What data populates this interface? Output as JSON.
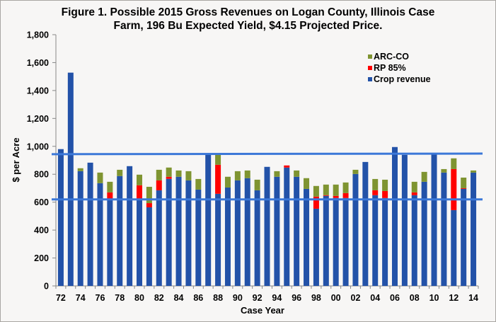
{
  "chart_data": {
    "type": "bar",
    "stacked": true,
    "title": "Figure 1.  Possible 2015 Gross Revenues on Logan County, Illinois Case Farm, 196 Bu Expected Yield,  $4.15 Projected Price.",
    "title_lines": [
      "Figure 1.  Possible 2015 Gross Revenues on Logan County, Illinois Case",
      "Farm, 196 Bu Expected Yield,  $4.15 Projected Price."
    ],
    "xlabel": "Case Year",
    "ylabel": "$ per Acre",
    "ylim": [
      0,
      1800
    ],
    "yticks": [
      0,
      200,
      400,
      600,
      800,
      1000,
      1200,
      1400,
      1600,
      1800
    ],
    "ytick_labels": [
      "0",
      "200",
      "400",
      "600",
      "800",
      "1,000",
      "1,200",
      "1,400",
      "1,600",
      "1,800"
    ],
    "categories": [
      "72",
      "73",
      "74",
      "75",
      "76",
      "77",
      "78",
      "79",
      "80",
      "81",
      "82",
      "83",
      "84",
      "85",
      "86",
      "87",
      "88",
      "89",
      "90",
      "91",
      "92",
      "93",
      "94",
      "95",
      "96",
      "97",
      "98",
      "99",
      "00",
      "01",
      "02",
      "03",
      "04",
      "05",
      "06",
      "07",
      "08",
      "09",
      "10",
      "11",
      "12",
      "13",
      "14"
    ],
    "xtick_labels": [
      "72",
      "74",
      "76",
      "78",
      "80",
      "82",
      "84",
      "86",
      "88",
      "90",
      "92",
      "94",
      "96",
      "98",
      "00",
      "02",
      "04",
      "06",
      "08",
      "10",
      "12",
      "14"
    ],
    "grid": false,
    "legend_position": "top-right",
    "series": [
      {
        "name": "Crop revenue",
        "color": "#2352a8",
        "values": [
          980,
          1528,
          822,
          883,
          736,
          625,
          787,
          858,
          620,
          563,
          685,
          767,
          782,
          756,
          690,
          940,
          660,
          705,
          756,
          772,
          685,
          853,
          782,
          848,
          782,
          695,
          553,
          645,
          630,
          630,
          802,
          888,
          650,
          630,
          995,
          939,
          650,
          746,
          942,
          812,
          543,
          695,
          812
        ]
      },
      {
        "name": "RP 85%",
        "color": "#ff0000",
        "values": [
          0,
          0,
          0,
          0,
          0,
          45,
          0,
          0,
          101,
          30,
          71,
          15,
          0,
          0,
          0,
          0,
          208,
          0,
          0,
          0,
          0,
          0,
          0,
          15,
          0,
          0,
          87,
          5,
          15,
          35,
          0,
          0,
          35,
          50,
          0,
          0,
          20,
          0,
          0,
          0,
          294,
          5,
          0
        ]
      },
      {
        "name": "ARC-CO",
        "color": "#7f9431",
        "values": [
          0,
          0,
          21,
          0,
          76,
          76,
          45,
          0,
          76,
          117,
          76,
          66,
          45,
          66,
          76,
          0,
          72,
          77,
          66,
          55,
          76,
          0,
          40,
          0,
          45,
          77,
          76,
          76,
          81,
          76,
          30,
          0,
          81,
          81,
          0,
          0,
          76,
          71,
          0,
          25,
          77,
          76,
          15
        ]
      }
    ],
    "reference_lines": [
      {
        "name": "upper-reference-line",
        "y_start": 944,
        "y_end": 948,
        "color": "#3c78d8"
      },
      {
        "name": "lower-reference-line",
        "y_start": 620,
        "y_end": 620,
        "color": "#3c78d8"
      }
    ],
    "legend_order": [
      "ARC-CO",
      "RP 85%",
      "Crop revenue"
    ]
  }
}
